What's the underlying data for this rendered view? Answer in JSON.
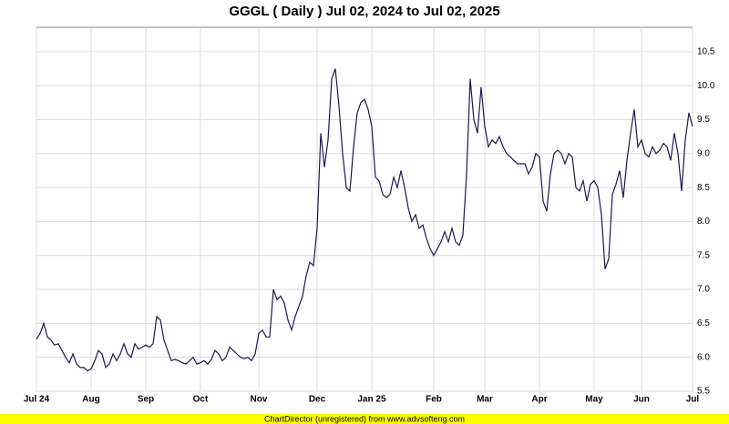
{
  "chart_data": {
    "type": "line",
    "title": "GGGL ( Daily ) Jul 02, 2024 to Jul 02, 2025",
    "color": "#1a1a4e",
    "grid": true,
    "xlim": [
      0,
      180
    ],
    "ylim": [
      5.5,
      10.86
    ],
    "xticks": [
      {
        "value": 0,
        "label": "Jul 24"
      },
      {
        "value": 15,
        "label": "Aug"
      },
      {
        "value": 30,
        "label": "Sep"
      },
      {
        "value": 45,
        "label": "Oct"
      },
      {
        "value": 61,
        "label": "Nov"
      },
      {
        "value": 77,
        "label": "Dec"
      },
      {
        "value": 92,
        "label": "Jan 25"
      },
      {
        "value": 109,
        "label": "Feb"
      },
      {
        "value": 123,
        "label": "Mar"
      },
      {
        "value": 138,
        "label": "Apr"
      },
      {
        "value": 153,
        "label": "May"
      },
      {
        "value": 166,
        "label": "Jun"
      },
      {
        "value": 180,
        "label": "Jul"
      }
    ],
    "yticks": [
      5.5,
      {
        "value": 6,
        "label": "6.0"
      },
      6.5,
      {
        "value": 7,
        "label": "7.0"
      },
      7.5,
      {
        "value": 8,
        "label": "8.0"
      },
      8.5,
      {
        "value": 9,
        "label": "9.0"
      },
      9.5,
      {
        "value": 10,
        "label": "10.0"
      },
      10.5
    ],
    "values": [
      6.27,
      6.35,
      6.5,
      6.3,
      6.25,
      6.18,
      6.2,
      6.1,
      6.0,
      5.92,
      6.05,
      5.9,
      5.85,
      5.85,
      5.8,
      5.83,
      5.95,
      6.1,
      6.05,
      5.85,
      5.9,
      6.05,
      5.95,
      6.05,
      6.2,
      6.05,
      6.0,
      6.2,
      6.12,
      6.15,
      6.18,
      6.15,
      6.2,
      6.6,
      6.55,
      6.25,
      6.1,
      5.95,
      5.97,
      5.95,
      5.92,
      5.9,
      5.95,
      6.0,
      5.9,
      5.92,
      5.95,
      5.9,
      5.97,
      6.1,
      6.05,
      5.95,
      6.0,
      6.15,
      6.1,
      6.05,
      6.0,
      5.98,
      6.0,
      5.95,
      6.05,
      6.35,
      6.4,
      6.3,
      6.3,
      7.0,
      6.85,
      6.9,
      6.8,
      6.55,
      6.4,
      6.6,
      6.75,
      6.9,
      7.2,
      7.4,
      7.35,
      7.9,
      9.3,
      8.8,
      9.2,
      10.1,
      10.25,
      9.7,
      9.0,
      8.5,
      8.45,
      9.1,
      9.6,
      9.75,
      9.8,
      9.65,
      9.4,
      8.65,
      8.6,
      8.4,
      8.35,
      8.4,
      8.65,
      8.5,
      8.75,
      8.5,
      8.2,
      8.0,
      8.1,
      7.9,
      7.95,
      7.75,
      7.6,
      7.5,
      7.6,
      7.7,
      7.85,
      7.7,
      7.9,
      7.7,
      7.65,
      7.8,
      8.7,
      10.1,
      9.5,
      9.3,
      9.98,
      9.4,
      9.1,
      9.2,
      9.15,
      9.25,
      9.1,
      9.0,
      8.95,
      8.9,
      8.85,
      8.85,
      8.85,
      8.7,
      8.8,
      9.0,
      8.95,
      8.3,
      8.15,
      8.7,
      9.0,
      9.05,
      9.0,
      8.85,
      9.0,
      8.95,
      8.5,
      8.45,
      8.6,
      8.3,
      8.55,
      8.6,
      8.5,
      8.1,
      7.3,
      7.45,
      8.4,
      8.55,
      8.75,
      8.35,
      8.9,
      9.3,
      9.65,
      9.1,
      9.2,
      9.0,
      8.95,
      9.1,
      9.0,
      9.05,
      9.15,
      9.1,
      8.9,
      9.3,
      9.0,
      8.45,
      9.2,
      9.6,
      9.4
    ]
  },
  "footer": "ChartDirector (unregistered) from www.advsofteng.com"
}
